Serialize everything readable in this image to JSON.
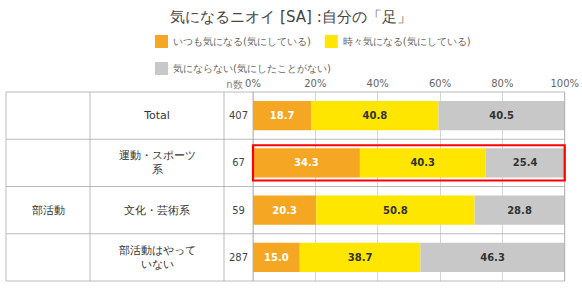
{
  "chart_data": {
    "type": "bar",
    "title": "気になるニオイ [SA] :自分の「足」",
    "orientation": "horizontal",
    "stacked": true,
    "data_labels": true,
    "grid": true,
    "categories": [
      "Total",
      "運動・スポーツ\n系",
      "文化・芸術系",
      "部活動はやって\nいない"
    ],
    "groups": [
      null,
      "部活動",
      "部活動",
      "部活動"
    ],
    "n": [
      407,
      67,
      59,
      287
    ],
    "n_header": "n数",
    "highlight": [
      false,
      true,
      false,
      false
    ],
    "series": [
      {
        "name": "いつも気になる(気にしている)",
        "color": "#F5A623",
        "values": [
          18.7,
          34.3,
          20.3,
          15.0
        ],
        "value_labels": [
          "18.7",
          "34.3",
          "20.3",
          "15.0"
        ]
      },
      {
        "name": "時々気になる(気にしている)",
        "color": "#FFE600",
        "values": [
          40.8,
          40.3,
          50.8,
          38.7
        ],
        "value_labels": [
          "40.8",
          "40.3",
          "50.8",
          "38.7"
        ]
      },
      {
        "name": "気にならない(気にしたことがない)",
        "color": "#C8C8C8",
        "values": [
          40.5,
          25.4,
          28.8,
          46.3
        ],
        "value_labels": [
          "40.5",
          "25.4",
          "28.8",
          "46.3"
        ]
      }
    ],
    "xlim": [
      0,
      100
    ],
    "xticks": [
      {
        "value": 0,
        "label": "0%"
      },
      {
        "value": 20,
        "label": "20%"
      },
      {
        "value": 40,
        "label": "40%"
      },
      {
        "value": 60,
        "label": "60%"
      },
      {
        "value": 80,
        "label": "80%"
      },
      {
        "value": 100,
        "label": "100%"
      }
    ]
  }
}
